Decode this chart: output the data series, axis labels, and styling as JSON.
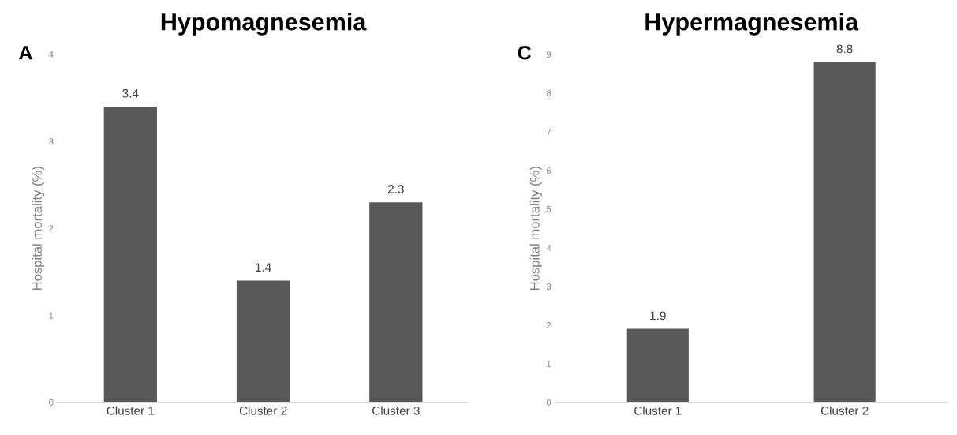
{
  "chart_data": [
    {
      "type": "bar",
      "title": "Hypomagnesemia",
      "ylabel": "Hospital mortality (%)",
      "annotations": [
        "A"
      ],
      "categories": [
        "Cluster 1",
        "Cluster 2",
        "Cluster 3"
      ],
      "values": [
        3.4,
        1.4,
        2.3
      ],
      "color": "#595959",
      "ylim": [
        0,
        4
      ],
      "yticks": [
        0,
        1,
        2,
        3,
        4
      ],
      "data_labels": true,
      "grid": false,
      "legend": false
    },
    {
      "type": "bar",
      "title": "Hypermagnesemia",
      "ylabel": "Hospital mortality (%)",
      "annotations": [
        "C"
      ],
      "categories": [
        "Cluster 1",
        "Cluster 2"
      ],
      "values": [
        1.9,
        8.8
      ],
      "color": "#595959",
      "ylim": [
        0,
        9
      ],
      "yticks": [
        0,
        1,
        2,
        3,
        4,
        5,
        6,
        7,
        8,
        9
      ],
      "data_labels": true,
      "grid": false,
      "legend": false
    }
  ]
}
